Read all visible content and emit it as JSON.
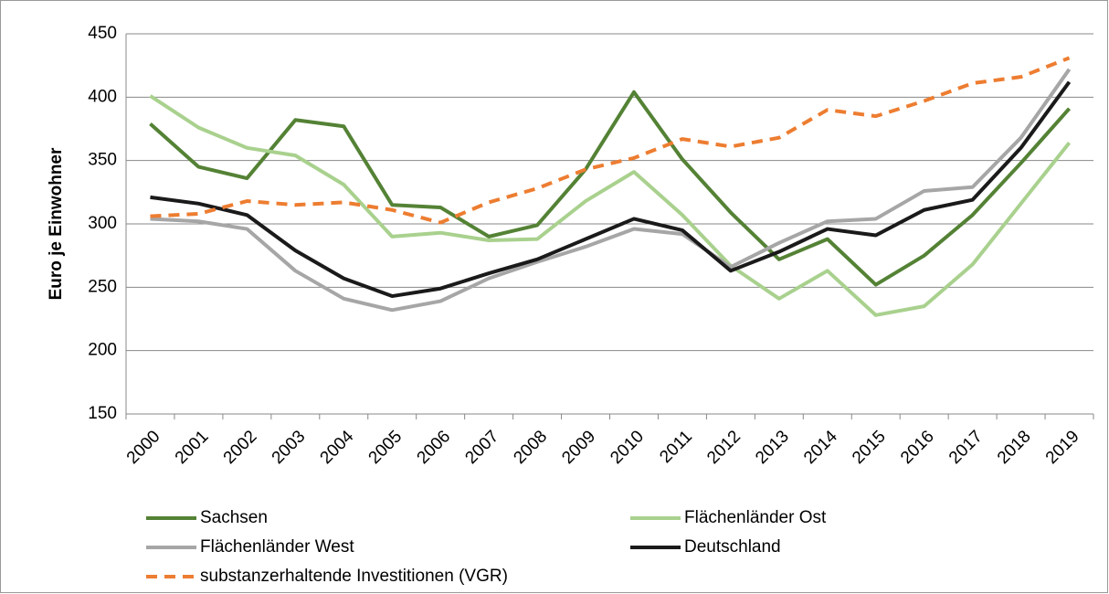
{
  "chart_data": {
    "type": "line",
    "y_label": "Euro je Einwohner",
    "categories": [
      "2000",
      "2001",
      "2002",
      "2003",
      "2004",
      "2005",
      "2006",
      "2007",
      "2008",
      "2009",
      "2010",
      "2011",
      "2012",
      "2013",
      "2014",
      "2015",
      "2016",
      "2017",
      "2018",
      "2019"
    ],
    "series": [
      {
        "name": "Sachsen",
        "color": "#548235",
        "dashed": false,
        "values": [
          379,
          345,
          336,
          382,
          377,
          315,
          313,
          290,
          299,
          343,
          404,
          351,
          309,
          272,
          288,
          252,
          275,
          307,
          348,
          391
        ]
      },
      {
        "name": "Flächenländer Ost",
        "color": "#a9d18e",
        "dashed": false,
        "values": [
          401,
          376,
          360,
          354,
          331,
          290,
          293,
          287,
          288,
          318,
          341,
          307,
          267,
          241,
          263,
          228,
          235,
          268,
          316,
          364
        ]
      },
      {
        "name": "Flächenländer West",
        "color": "#a6a6a6",
        "dashed": false,
        "values": [
          304,
          302,
          296,
          263,
          241,
          232,
          239,
          257,
          270,
          282,
          296,
          292,
          266,
          285,
          302,
          304,
          326,
          329,
          368,
          422
        ]
      },
      {
        "name": "Deutschland",
        "color": "#1a1a1a",
        "dashed": false,
        "values": [
          321,
          316,
          307,
          279,
          257,
          243,
          249,
          261,
          272,
          288,
          304,
          295,
          263,
          278,
          296,
          291,
          311,
          319,
          360,
          412
        ]
      },
      {
        "name": "substanzerhaltende Investitionen (VGR)",
        "color": "#ed7d31",
        "dashed": true,
        "values": [
          306,
          308,
          318,
          315,
          317,
          311,
          301,
          317,
          328,
          343,
          352,
          367,
          361,
          368,
          390,
          385,
          397,
          411,
          416,
          431
        ]
      }
    ],
    "ylim": [
      150,
      450
    ],
    "yticks": [
      150,
      200,
      250,
      300,
      350,
      400,
      450
    ],
    "grid": true
  }
}
